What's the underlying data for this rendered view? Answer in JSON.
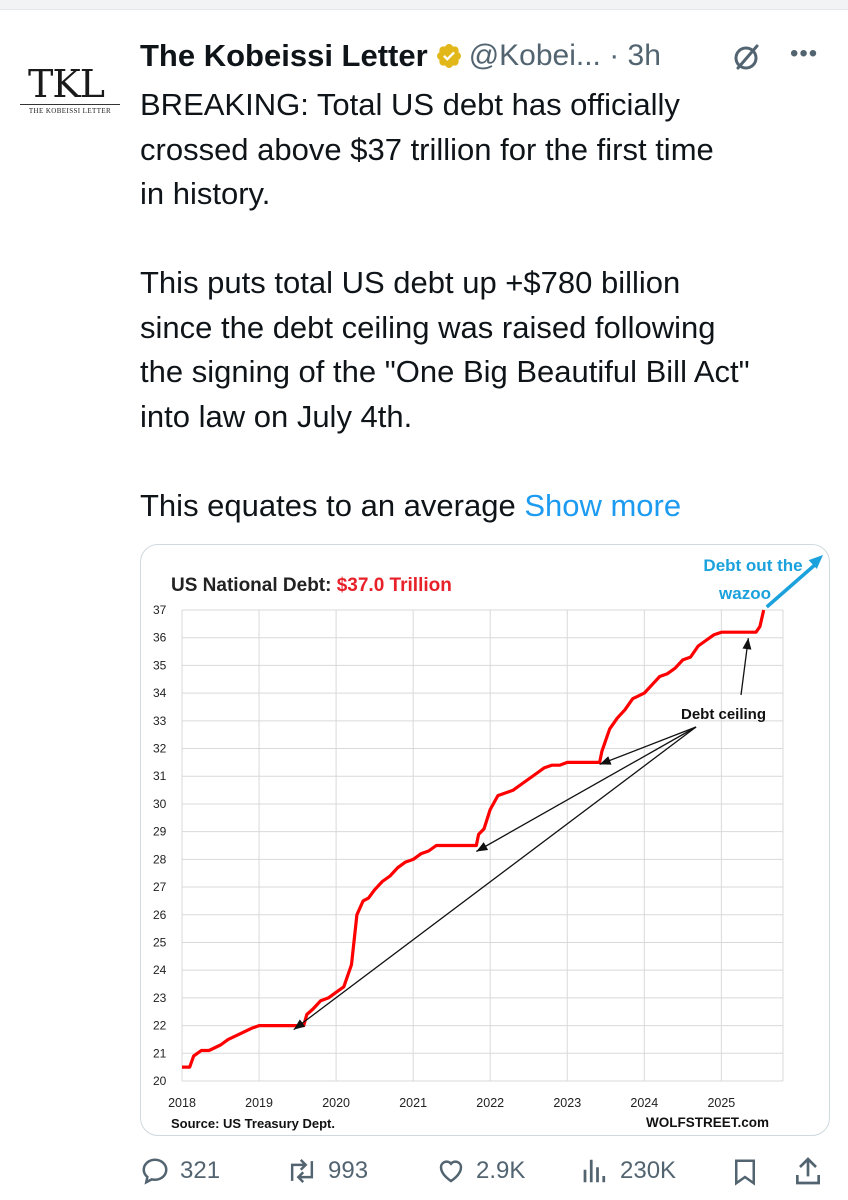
{
  "tweet": {
    "author_name": "The Kobeissi Letter",
    "handle_time": "@Kobei... · 3h",
    "avatar": {
      "logo_text": "TKL",
      "logo_sub": "THE KOBEISSI LETTER"
    },
    "text_lines_1": "BREAKING: Total US debt has officially\ncrossed above $37 trillion for the first time\nin history.",
    "text_lines_2": "This puts total US debt up +$780 billion\nsince the debt ceiling was raised following\nthe signing of the \"One Big Beautiful Bill Act\"\ninto law on July 4th.",
    "text_line_3": "This equates to an average ",
    "show_more": "Show more",
    "colors": {
      "verified": "#e2b719",
      "link": "#1d9bf0",
      "muted": "#536471"
    }
  },
  "actions": {
    "replies": "321",
    "reposts": "993",
    "likes": "2.9K",
    "views": "230K"
  },
  "chart_data": {
    "type": "line",
    "title_prefix": "US National Debt: ",
    "title_value": "$37.0 Trillion",
    "xlabel": "",
    "ylabel": "",
    "x_ticks": [
      "2018",
      "2019",
      "2020",
      "2021",
      "2022",
      "2023",
      "2024",
      "2025"
    ],
    "y_ticks": [
      20,
      21,
      22,
      23,
      24,
      25,
      26,
      27,
      28,
      29,
      30,
      31,
      32,
      33,
      34,
      35,
      36,
      37
    ],
    "ylim": [
      20,
      37
    ],
    "xlim": [
      2018,
      2025.8
    ],
    "grid": true,
    "source": "Source: US Treasury Dept.",
    "watermark": "WOLFSTREET.com",
    "annotation_ceiling": "Debt ceiling",
    "annotation_wazoo_1": "Debt out the",
    "annotation_wazoo_2": "wazoo",
    "line_color": "#ff0000",
    "accent_color": "#1ba1dc",
    "series": [
      {
        "x": [
          2018.0,
          2018.1,
          2018.15,
          2018.25,
          2018.35,
          2018.5,
          2018.6,
          2018.75,
          2018.9,
          2019.0,
          2019.1,
          2019.2,
          2019.3,
          2019.45,
          2019.58,
          2019.62,
          2019.7,
          2019.8,
          2019.9,
          2020.0,
          2020.1,
          2020.2,
          2020.27,
          2020.35,
          2020.42,
          2020.5,
          2020.6,
          2020.7,
          2020.8,
          2020.9,
          2021.0,
          2021.1,
          2021.2,
          2021.3,
          2021.4,
          2021.5,
          2021.6,
          2021.7,
          2021.82,
          2021.85,
          2021.92,
          2022.0,
          2022.1,
          2022.2,
          2022.3,
          2022.4,
          2022.5,
          2022.6,
          2022.7,
          2022.8,
          2022.9,
          2023.0,
          2023.1,
          2023.2,
          2023.3,
          2023.42,
          2023.45,
          2023.55,
          2023.65,
          2023.75,
          2023.85,
          2024.0,
          2024.1,
          2024.2,
          2024.3,
          2024.4,
          2024.5,
          2024.6,
          2024.7,
          2024.8,
          2024.9,
          2025.0,
          2025.1,
          2025.2,
          2025.3,
          2025.45,
          2025.5,
          2025.55
        ],
        "values": [
          20.5,
          20.5,
          20.9,
          21.1,
          21.1,
          21.3,
          21.5,
          21.7,
          21.9,
          22.0,
          22.0,
          22.0,
          22.0,
          22.0,
          22.0,
          22.4,
          22.6,
          22.9,
          23.0,
          23.2,
          23.4,
          24.2,
          26.0,
          26.5,
          26.6,
          26.9,
          27.2,
          27.4,
          27.7,
          27.9,
          28.0,
          28.2,
          28.3,
          28.5,
          28.5,
          28.5,
          28.5,
          28.5,
          28.5,
          28.9,
          29.1,
          29.8,
          30.3,
          30.4,
          30.5,
          30.7,
          30.9,
          31.1,
          31.3,
          31.4,
          31.4,
          31.5,
          31.5,
          31.5,
          31.5,
          31.5,
          31.9,
          32.7,
          33.1,
          33.4,
          33.8,
          34.0,
          34.3,
          34.6,
          34.7,
          34.9,
          35.2,
          35.3,
          35.7,
          35.9,
          36.1,
          36.2,
          36.2,
          36.2,
          36.2,
          36.2,
          36.4,
          37.0
        ]
      }
    ]
  }
}
